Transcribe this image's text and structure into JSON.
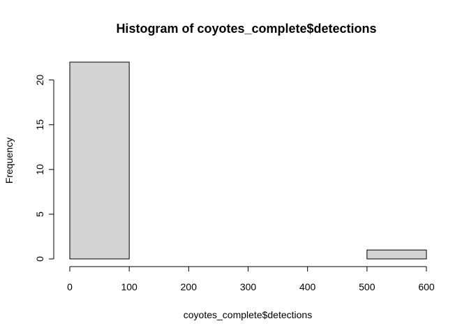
{
  "chart_data": {
    "type": "bar",
    "histogram": true,
    "title": "Histogram of coyotes_complete$detections",
    "xlabel": "coyotes_complete$detections",
    "ylabel": "Frequency",
    "bins": [
      {
        "start": 0,
        "end": 100,
        "count": 22
      },
      {
        "start": 100,
        "end": 200,
        "count": 0
      },
      {
        "start": 200,
        "end": 300,
        "count": 0
      },
      {
        "start": 300,
        "end": 400,
        "count": 0
      },
      {
        "start": 400,
        "end": 500,
        "count": 0
      },
      {
        "start": 500,
        "end": 600,
        "count": 1
      }
    ],
    "xlim": [
      0,
      600
    ],
    "ylim": [
      0,
      22
    ],
    "x_ticks": [
      0,
      100,
      200,
      300,
      400,
      500,
      600
    ],
    "x_tick_labels": [
      "0",
      "100",
      "200",
      "300",
      "400",
      "500",
      "600"
    ],
    "y_ticks": [
      0,
      5,
      10,
      15,
      20
    ],
    "y_tick_labels": [
      "0",
      "5",
      "10",
      "15",
      "20"
    ],
    "bar_fill": "#d3d3d3",
    "bar_stroke": "#000000",
    "grid": false,
    "legend": "none"
  }
}
